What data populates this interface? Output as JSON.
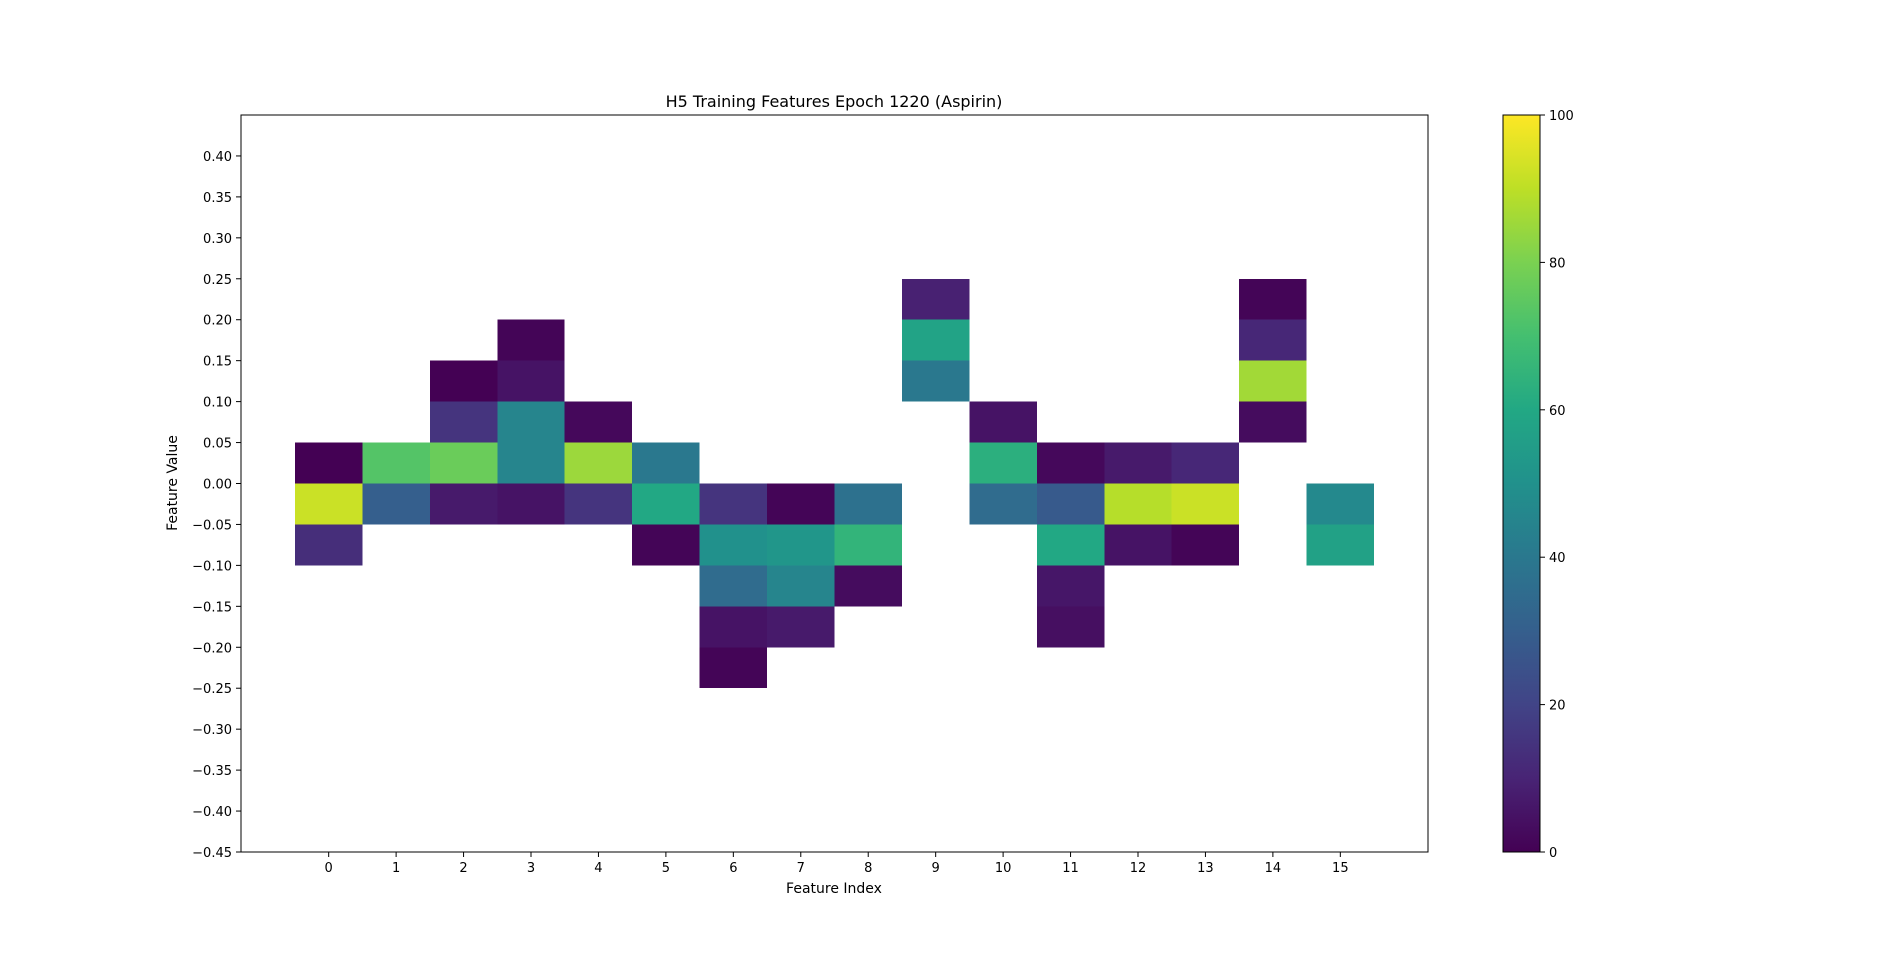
{
  "chart_data": {
    "type": "heatmap",
    "title": "H5 Training Features Epoch 1220 (Aspirin)",
    "xlabel": "Feature Index",
    "ylabel": "Feature Value",
    "x_ticks": [
      0,
      1,
      2,
      3,
      4,
      5,
      6,
      7,
      8,
      9,
      10,
      11,
      12,
      13,
      14,
      15
    ],
    "y_ticks": [
      "0.40",
      "0.35",
      "0.30",
      "0.25",
      "0.20",
      "0.15",
      "0.10",
      "0.05",
      "0.00",
      "−0.05",
      "−0.10",
      "−0.15",
      "−0.20",
      "−0.25",
      "−0.30",
      "−0.35",
      "−0.40",
      "−0.45"
    ],
    "xlim": [
      -1.3,
      16.3
    ],
    "ylim": [
      -0.45,
      0.45
    ],
    "bin_width": 0.05,
    "colormap": "viridis",
    "colorbar": {
      "min": 0,
      "max": 100,
      "ticks": [
        0,
        20,
        40,
        60,
        80,
        100
      ]
    },
    "grid": false,
    "cells": [
      {
        "x": 0,
        "y_low": 0.0,
        "value": 0
      },
      {
        "x": 0,
        "y_low": -0.05,
        "value": 92
      },
      {
        "x": 0,
        "y_low": -0.1,
        "value": 13
      },
      {
        "x": 1,
        "y_low": 0.0,
        "value": 73
      },
      {
        "x": 1,
        "y_low": -0.05,
        "value": 30
      },
      {
        "x": 2,
        "y_low": 0.1,
        "value": 0
      },
      {
        "x": 2,
        "y_low": 0.05,
        "value": 15
      },
      {
        "x": 2,
        "y_low": 0.0,
        "value": 77
      },
      {
        "x": 2,
        "y_low": -0.05,
        "value": 7
      },
      {
        "x": 3,
        "y_low": 0.15,
        "value": 1
      },
      {
        "x": 3,
        "y_low": 0.1,
        "value": 5
      },
      {
        "x": 3,
        "y_low": 0.05,
        "value": 45
      },
      {
        "x": 3,
        "y_low": 0.0,
        "value": 45
      },
      {
        "x": 3,
        "y_low": -0.05,
        "value": 5
      },
      {
        "x": 4,
        "y_low": 0.05,
        "value": 2
      },
      {
        "x": 4,
        "y_low": 0.0,
        "value": 85
      },
      {
        "x": 4,
        "y_low": -0.05,
        "value": 15
      },
      {
        "x": 5,
        "y_low": 0.0,
        "value": 40
      },
      {
        "x": 5,
        "y_low": -0.05,
        "value": 60
      },
      {
        "x": 5,
        "y_low": -0.1,
        "value": 1
      },
      {
        "x": 6,
        "y_low": -0.05,
        "value": 15
      },
      {
        "x": 6,
        "y_low": -0.1,
        "value": 50
      },
      {
        "x": 6,
        "y_low": -0.15,
        "value": 35
      },
      {
        "x": 6,
        "y_low": -0.2,
        "value": 5
      },
      {
        "x": 6,
        "y_low": -0.25,
        "value": 1
      },
      {
        "x": 7,
        "y_low": -0.05,
        "value": 1
      },
      {
        "x": 7,
        "y_low": -0.1,
        "value": 52
      },
      {
        "x": 7,
        "y_low": -0.15,
        "value": 45
      },
      {
        "x": 7,
        "y_low": -0.2,
        "value": 7
      },
      {
        "x": 8,
        "y_low": -0.05,
        "value": 37
      },
      {
        "x": 8,
        "y_low": -0.1,
        "value": 65
      },
      {
        "x": 8,
        "y_low": -0.15,
        "value": 3
      },
      {
        "x": 9,
        "y_low": 0.2,
        "value": 9
      },
      {
        "x": 9,
        "y_low": 0.15,
        "value": 58
      },
      {
        "x": 9,
        "y_low": 0.1,
        "value": 40
      },
      {
        "x": 10,
        "y_low": 0.05,
        "value": 5
      },
      {
        "x": 10,
        "y_low": 0.0,
        "value": 63
      },
      {
        "x": 10,
        "y_low": -0.05,
        "value": 35
      },
      {
        "x": 11,
        "y_low": 0.0,
        "value": 2
      },
      {
        "x": 11,
        "y_low": -0.05,
        "value": 28
      },
      {
        "x": 11,
        "y_low": -0.1,
        "value": 60
      },
      {
        "x": 11,
        "y_low": -0.15,
        "value": 6
      },
      {
        "x": 11,
        "y_low": -0.2,
        "value": 4
      },
      {
        "x": 12,
        "y_low": 0.0,
        "value": 7
      },
      {
        "x": 12,
        "y_low": -0.05,
        "value": 89
      },
      {
        "x": 12,
        "y_low": -0.1,
        "value": 5
      },
      {
        "x": 13,
        "y_low": 0.0,
        "value": 11
      },
      {
        "x": 13,
        "y_low": -0.05,
        "value": 92
      },
      {
        "x": 13,
        "y_low": -0.1,
        "value": 1
      },
      {
        "x": 14,
        "y_low": 0.2,
        "value": 1
      },
      {
        "x": 14,
        "y_low": 0.15,
        "value": 11
      },
      {
        "x": 14,
        "y_low": 0.1,
        "value": 86
      },
      {
        "x": 14,
        "y_low": 0.05,
        "value": 3
      },
      {
        "x": 15,
        "y_low": -0.05,
        "value": 47
      },
      {
        "x": 15,
        "y_low": -0.1,
        "value": 57
      }
    ]
  }
}
